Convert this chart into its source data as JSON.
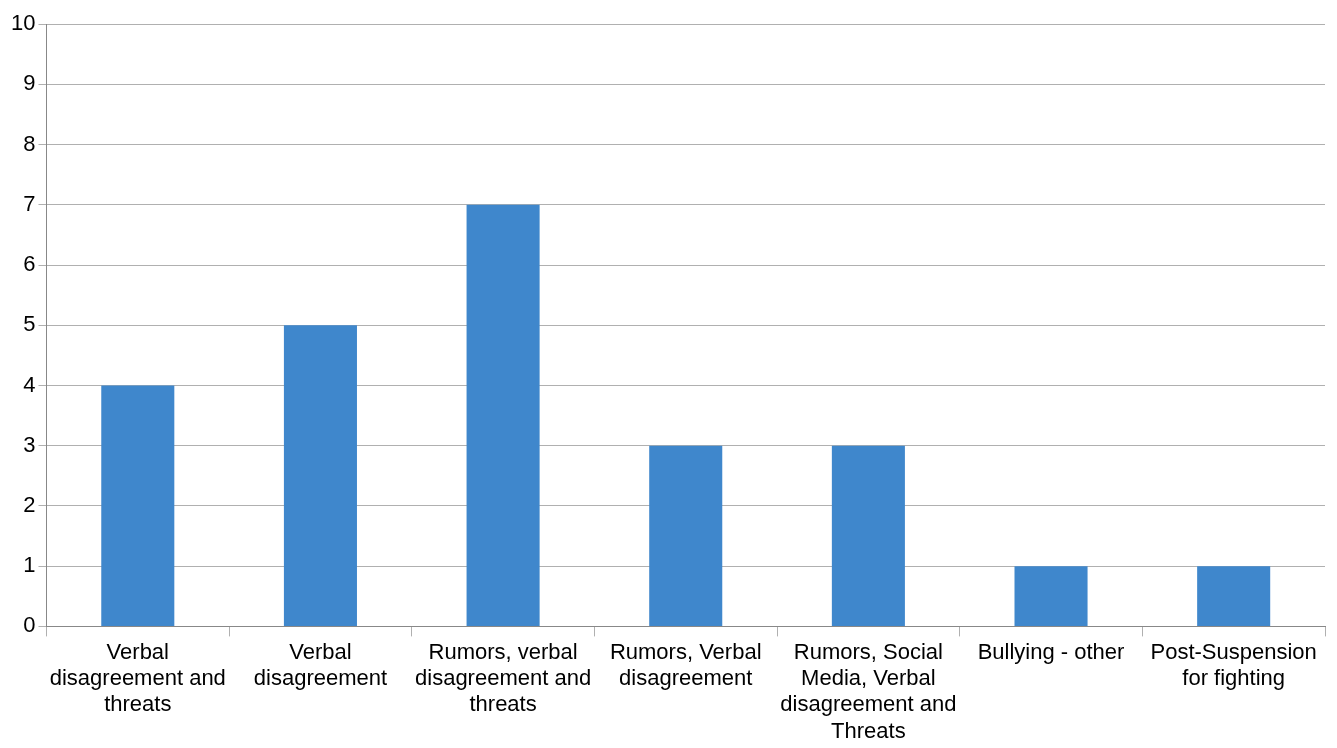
{
  "chart_data": {
    "type": "bar",
    "categories": [
      "Verbal disagreement and threats",
      "Verbal disagreement",
      "Rumors, verbal disagreement and threats",
      "Rumors, Verbal disagreement",
      "Rumors, Social Media, Verbal disagreement and Threats",
      "Bullying - other",
      "Post-Suspension for fighting"
    ],
    "values": [
      4,
      5,
      7,
      3,
      3,
      1,
      1
    ],
    "color": "#3f87cc",
    "ylim": [
      0,
      10
    ],
    "yticks": [
      0,
      1,
      2,
      3,
      4,
      5,
      6,
      7,
      8,
      9,
      10
    ],
    "grid": "y",
    "legend": false
  }
}
